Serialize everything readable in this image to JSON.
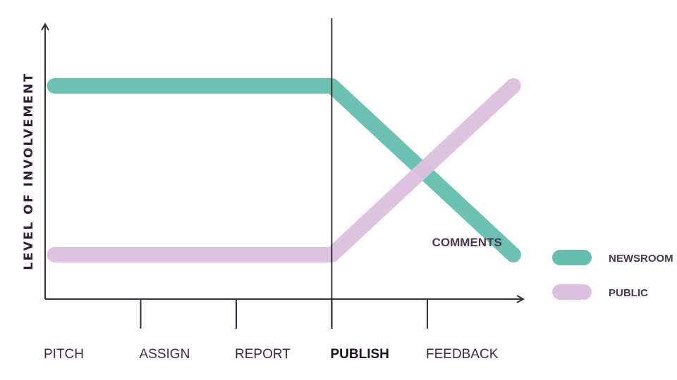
{
  "chart_data": {
    "type": "line",
    "title": "",
    "xlabel": "",
    "ylabel": "LEVEL OF INVOLVEMENT",
    "categories": [
      "PITCH",
      "ASSIGN",
      "REPORT",
      "PUBLISH",
      "FEEDBACK"
    ],
    "emphasized_category": "PUBLISH",
    "x_range": [
      0,
      5
    ],
    "y_range": [
      0,
      1
    ],
    "marker_line_at": "PUBLISH",
    "grid": false,
    "legend_position": "right",
    "series": [
      {
        "name": "NEWSROOM",
        "color": "#64bfae",
        "points": [
          [
            0.1,
            0.9
          ],
          [
            3,
            0.9
          ],
          [
            4.9,
            0.1
          ]
        ]
      },
      {
        "name": "PUBLIC",
        "color": "#dcc0df",
        "points": [
          [
            0.1,
            0.1
          ],
          [
            3,
            0.1
          ],
          [
            4.9,
            0.9
          ]
        ]
      }
    ],
    "annotations": [
      {
        "text": "COMMENTS",
        "x": 3.95,
        "y": 0.16
      }
    ]
  }
}
